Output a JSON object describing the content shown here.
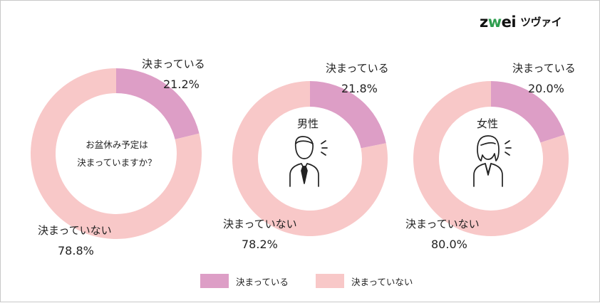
{
  "brand": {
    "logo_main": "zwei",
    "logo_sub": "ツヴァイ",
    "accent_color": "#2e9e4f"
  },
  "colors": {
    "decided": "#dd9ec6",
    "not_decided": "#f8c8c8"
  },
  "chart_data": [
    {
      "type": "pie",
      "center_text_lines": [
        "お盆休み予定は",
        "決まっていますか？"
      ],
      "categories": [
        "決まっている",
        "決まっていない"
      ],
      "values": [
        21.2,
        78.8
      ],
      "value_labels": [
        "21.2%",
        "78.8%"
      ]
    },
    {
      "type": "pie",
      "center_text": "男性",
      "icon": "man-speaking-icon",
      "categories": [
        "決まっている",
        "決まっていない"
      ],
      "values": [
        21.8,
        78.2
      ],
      "value_labels": [
        "21.8%",
        "78.2%"
      ]
    },
    {
      "type": "pie",
      "center_text": "女性",
      "icon": "woman-speaking-icon",
      "categories": [
        "決まっている",
        "決まっていない"
      ],
      "values": [
        20.0,
        80.0
      ],
      "value_labels": [
        "20.0%",
        "80.0%"
      ]
    }
  ],
  "legend": [
    {
      "label": "決まっている",
      "color": "#dd9ec6"
    },
    {
      "label": "決まっていない",
      "color": "#f8c8c8"
    }
  ]
}
